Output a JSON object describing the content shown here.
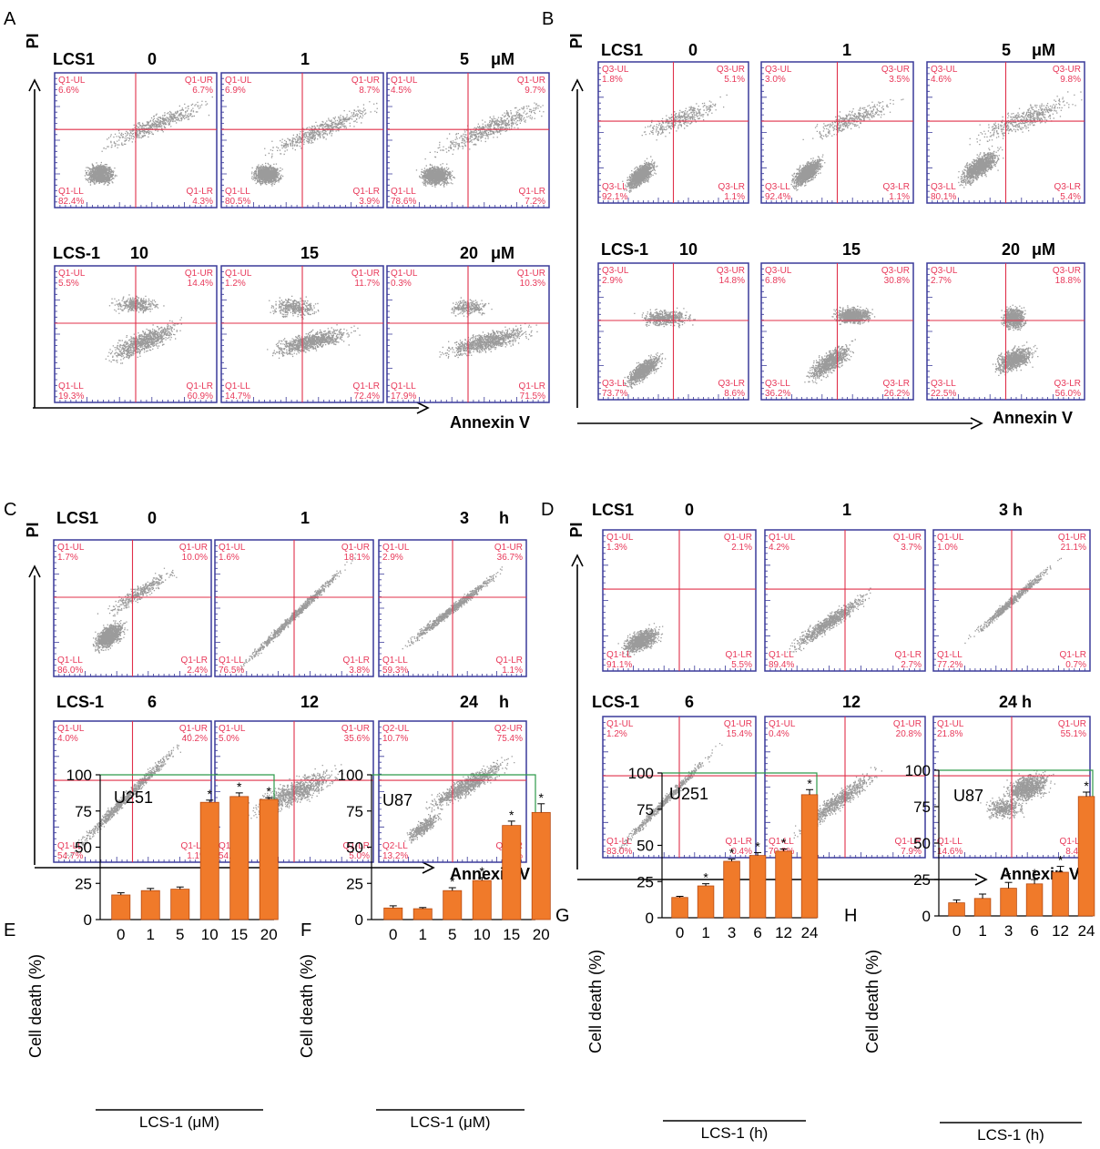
{
  "figure": {
    "colors": {
      "quadrant_text": "#e8395a",
      "gate_line": "#e0304a",
      "plot_border": "#3a3a9a",
      "bar_fill": "#f07a2a",
      "bar_edge": "#b84a10",
      "chart_frame": "#2e9a4a",
      "dots": "#222222"
    },
    "axis_labels": {
      "y": "PI",
      "x": "Annexin V"
    },
    "flow_panels": [
      {
        "letter": "A",
        "rows": [
          {
            "prefix": "LCS1",
            "values": [
              "0",
              "1",
              "5"
            ],
            "unit": "μM",
            "plots": [
              {
                "ul": "Q1-UL",
                "ul_v": "6.6%",
                "ur": "Q1-UR",
                "ur_v": "6.7%",
                "ll": "Q1-LL",
                "ll_v": "82.4%",
                "lr": "Q1-LR",
                "lr_v": "4.3%"
              },
              {
                "ul": "Q1-UL",
                "ul_v": "6.9%",
                "ur": "Q1-UR",
                "ur_v": "8.7%",
                "ll": "Q1-LL",
                "ll_v": "80.5%",
                "lr": "Q1-LR",
                "lr_v": "3.9%"
              },
              {
                "ul": "Q1-UL",
                "ul_v": "4.5%",
                "ur": "Q1-UR",
                "ur_v": "9.7%",
                "ll": "Q1-LL",
                "ll_v": "78.6%",
                "lr": "Q1-LR",
                "lr_v": "7.2%"
              }
            ]
          },
          {
            "prefix": "LCS-1",
            "values": [
              "10",
              "15",
              "20"
            ],
            "unit": "μM",
            "plots": [
              {
                "ul": "Q1-UL",
                "ul_v": "5.5%",
                "ur": "Q1-UR",
                "ur_v": "14.4%",
                "ll": "Q1-LL",
                "ll_v": "19.3%",
                "lr": "Q1-LR",
                "lr_v": "60.9%"
              },
              {
                "ul": "Q1-UL",
                "ul_v": "1.2%",
                "ur": "Q1-UR",
                "ur_v": "11.7%",
                "ll": "Q1-LL",
                "ll_v": "14.7%",
                "lr": "Q1-LR",
                "lr_v": "72.4%"
              },
              {
                "ul": "Q1-UL",
                "ul_v": "0.3%",
                "ur": "Q1-UR",
                "ur_v": "10.3%",
                "ll": "Q1-LL",
                "ll_v": "17.9%",
                "lr": "Q1-LR",
                "lr_v": "71.5%"
              }
            ]
          }
        ]
      },
      {
        "letter": "B",
        "rows": [
          {
            "prefix": "LCS1",
            "values": [
              "0",
              "1",
              "5"
            ],
            "unit": "μM",
            "plots": [
              {
                "ul": "Q3-UL",
                "ul_v": "1.8%",
                "ur": "Q3-UR",
                "ur_v": "5.1%",
                "ll": "Q3-LL",
                "ll_v": "92.1%",
                "lr": "Q3-LR",
                "lr_v": "1.1%"
              },
              {
                "ul": "Q3-UL",
                "ul_v": "3.0%",
                "ur": "Q3-UR",
                "ur_v": "3.5%",
                "ll": "Q3-LL",
                "ll_v": "92.4%",
                "lr": "Q3-LR",
                "lr_v": "1.1%"
              },
              {
                "ul": "Q3-UL",
                "ul_v": "4.6%",
                "ur": "Q3-UR",
                "ur_v": "9.8%",
                "ll": "Q3-LL",
                "ll_v": "80.1%",
                "lr": "Q3-LR",
                "lr_v": "5.4%"
              }
            ]
          },
          {
            "prefix": "LCS-1",
            "values": [
              "10",
              "15",
              "20"
            ],
            "unit": "μM",
            "plots": [
              {
                "ul": "Q3-UL",
                "ul_v": "2.9%",
                "ur": "Q3-UR",
                "ur_v": "14.8%",
                "ll": "Q3-LL",
                "ll_v": "73.7%",
                "lr": "Q3-LR",
                "lr_v": "8.6%"
              },
              {
                "ul": "Q3-UL",
                "ul_v": "6.8%",
                "ur": "Q3-UR",
                "ur_v": "30.8%",
                "ll": "Q3-LL",
                "ll_v": "36.2%",
                "lr": "Q3-LR",
                "lr_v": "26.2%"
              },
              {
                "ul": "Q3-UL",
                "ul_v": "2.7%",
                "ur": "Q3-UR",
                "ur_v": "18.8%",
                "ll": "Q3-LL",
                "ll_v": "22.5%",
                "lr": "Q3-LR",
                "lr_v": "56.0%"
              }
            ]
          }
        ]
      },
      {
        "letter": "C",
        "rows": [
          {
            "prefix": "LCS1",
            "values": [
              "0",
              "1",
              "3"
            ],
            "unit": "h",
            "plots": [
              {
                "ul": "Q1-UL",
                "ul_v": "1.7%",
                "ur": "Q1-UR",
                "ur_v": "10.0%",
                "ll": "Q1-LL",
                "ll_v": "86.0%",
                "lr": "Q1-LR",
                "lr_v": "2.4%"
              },
              {
                "ul": "Q1-UL",
                "ul_v": "1.6%",
                "ur": "Q1-UR",
                "ur_v": "18.1%",
                "ll": "Q1-LL",
                "ll_v": "76.5%",
                "lr": "Q1-LR",
                "lr_v": "3.8%"
              },
              {
                "ul": "Q1-UL",
                "ul_v": "2.9%",
                "ur": "Q1-UR",
                "ur_v": "36.7%",
                "ll": "Q1-LL",
                "ll_v": "59.3%",
                "lr": "Q1-LR",
                "lr_v": "1.1%"
              }
            ]
          },
          {
            "prefix": "LCS-1",
            "values": [
              "6",
              "12",
              "24"
            ],
            "unit": "h",
            "plots": [
              {
                "ul": "Q1-UL",
                "ul_v": "4.0%",
                "ur": "Q1-UR",
                "ur_v": "40.2%",
                "ll": "Q1-LL",
                "ll_v": "54.7%",
                "lr": "Q1-LR",
                "lr_v": "1.1%"
              },
              {
                "ul": "Q1-UL",
                "ul_v": "5.0%",
                "ur": "Q1-UR",
                "ur_v": "35.6%",
                "ll": "Q1-LL",
                "ll_v": "54.5%",
                "lr": "Q1-LR",
                "lr_v": "5.0%"
              },
              {
                "ul": "Q2-UL",
                "ul_v": "10.7%",
                "ur": "Q2-UR",
                "ur_v": "75.4%",
                "ll": "Q2-LL",
                "ll_v": "13.2%",
                "lr": "Q2-LR",
                "lr_v": "0.6%"
              }
            ]
          }
        ]
      },
      {
        "letter": "D",
        "rows": [
          {
            "prefix": "LCS1",
            "values": [
              "0",
              "1",
              "3 h"
            ],
            "unit": "",
            "plots": [
              {
                "ul": "Q1-UL",
                "ul_v": "1.3%",
                "ur": "Q1-UR",
                "ur_v": "2.1%",
                "ll": "Q1-LL",
                "ll_v": "91.1%",
                "lr": "Q1-LR",
                "lr_v": "5.5%"
              },
              {
                "ul": "Q1-UL",
                "ul_v": "4.2%",
                "ur": "Q1-UR",
                "ur_v": "3.7%",
                "ll": "Q1-LL",
                "ll_v": "89.4%",
                "lr": "Q1-LR",
                "lr_v": "2.7%"
              },
              {
                "ul": "Q1-UL",
                "ul_v": "1.0%",
                "ur": "Q1-UR",
                "ur_v": "21.1%",
                "ll": "Q1-LL",
                "ll_v": "77.2%",
                "lr": "Q1-LR",
                "lr_v": "0.7%"
              }
            ]
          },
          {
            "prefix": "LCS-1",
            "values": [
              "6",
              "12",
              "24 h"
            ],
            "unit": "",
            "plots": [
              {
                "ul": "Q1-UL",
                "ul_v": "1.2%",
                "ur": "Q1-UR",
                "ur_v": "15.4%",
                "ll": "Q1-LL",
                "ll_v": "83.0%",
                "lr": "Q1-LR",
                "lr_v": "0.4%"
              },
              {
                "ul": "Q1-UL",
                "ul_v": "0.4%",
                "ur": "Q1-UR",
                "ur_v": "20.8%",
                "ll": "Q1-LL",
                "ll_v": "70.8%",
                "lr": "Q1-LR",
                "lr_v": "7.9%"
              },
              {
                "ul": "Q1-UL",
                "ul_v": "21.8%",
                "ur": "Q1-UR",
                "ur_v": "55.1%",
                "ll": "Q1-LL",
                "ll_v": "14.6%",
                "lr": "Q1-LR",
                "lr_v": "8.4%"
              }
            ]
          }
        ]
      }
    ]
  },
  "chart_data": [
    {
      "panel": "E",
      "type": "bar",
      "title": "U251",
      "categories": [
        "0",
        "1",
        "5",
        "10",
        "15",
        "20"
      ],
      "values": [
        17,
        20,
        21,
        81,
        85,
        83
      ],
      "errors": [
        1.5,
        1.5,
        1.5,
        1.5,
        2.5,
        1.2
      ],
      "significant": [
        false,
        false,
        false,
        true,
        true,
        true
      ],
      "ylabel": "Cell death (%)",
      "xlabel": "LCS-1 (μM)",
      "ylim": [
        0,
        100
      ],
      "yticks": [
        "0",
        "25",
        "50",
        "75",
        "100"
      ],
      "sig_mark": "*"
    },
    {
      "panel": "F",
      "type": "bar",
      "title": "U87",
      "categories": [
        "0",
        "1",
        "5",
        "10",
        "15",
        "20"
      ],
      "values": [
        8,
        7.5,
        20,
        27,
        65,
        74
      ],
      "errors": [
        1.5,
        0.8,
        2,
        2,
        3,
        6
      ],
      "significant": [
        false,
        false,
        true,
        true,
        true,
        true
      ],
      "ylabel": "Cell death (%)",
      "xlabel": "LCS-1 (μM)",
      "ylim": [
        0,
        100
      ],
      "yticks": [
        "0",
        "25",
        "50",
        "75",
        "100"
      ],
      "sig_mark": "*"
    },
    {
      "panel": "G",
      "type": "bar",
      "title": "U251",
      "categories": [
        "0",
        "1",
        "3",
        "6",
        "12",
        "24"
      ],
      "values": [
        14,
        22,
        39,
        43,
        46,
        85
      ],
      "errors": [
        0.8,
        1.5,
        1.5,
        2,
        1.5,
        3.5
      ],
      "significant": [
        false,
        true,
        true,
        true,
        true,
        true
      ],
      "ylabel": "Cell death (%)",
      "xlabel": "LCS-1 (h)",
      "ylim": [
        0,
        100
      ],
      "yticks": [
        "0",
        "25",
        "50",
        "75",
        "100"
      ],
      "sig_mark": "*"
    },
    {
      "panel": "H",
      "type": "bar",
      "title": "U87",
      "categories": [
        "0",
        "1",
        "3",
        "6",
        "12",
        "24"
      ],
      "values": [
        9,
        12,
        19,
        22,
        30,
        82
      ],
      "errors": [
        2,
        3,
        4,
        3,
        4,
        3
      ],
      "significant": [
        false,
        false,
        true,
        true,
        true,
        true
      ],
      "ylabel": "Cell death (%)",
      "xlabel": "LCS-1 (h)",
      "ylim": [
        0,
        100
      ],
      "yticks": [
        "0",
        "25",
        "50",
        "75",
        "100"
      ],
      "sig_mark": "*"
    }
  ]
}
